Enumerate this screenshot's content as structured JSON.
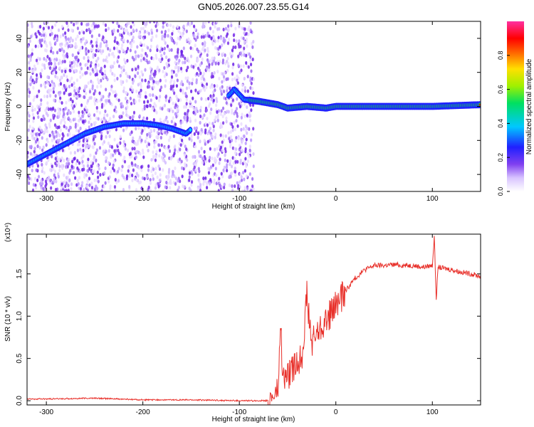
{
  "figure": {
    "title": "GN05.2026.007.23.55.G14"
  },
  "colors": {
    "line": "#e8302a",
    "axis": "#000000",
    "spectrum_scale": [
      "#ffffff",
      "#e6d8ff",
      "#a070f0",
      "#6a1fe6",
      "#2020ff",
      "#00c8ff",
      "#00e060",
      "#ffe000",
      "#ff6000",
      "#ff0000",
      "#ff30a0"
    ]
  },
  "chart_data": [
    {
      "type": "heatmap",
      "xlabel": "Height of straight line (km)",
      "ylabel": "Frequency (Hz)",
      "xlim": [
        -320,
        150
      ],
      "ylim": [
        -50,
        50
      ],
      "xticks": [
        -300,
        -200,
        -100,
        0,
        100
      ],
      "yticks": [
        -40,
        -20,
        0,
        20,
        40
      ],
      "xtick_labels": [
        "-300",
        "-200",
        "-100",
        "0",
        "100"
      ],
      "ytick_labels": [
        "-40",
        "-20",
        "0",
        "20",
        "40"
      ],
      "colorbar": {
        "label": "Normalized spectral amplitude",
        "range": [
          0,
          1
        ],
        "ticks": [
          "0.0",
          "0.2",
          "0.4",
          "0.6",
          "0.8"
        ]
      },
      "ridge": {
        "x": [
          -320,
          -300,
          -280,
          -260,
          -240,
          -220,
          -200,
          -185,
          -170,
          -155,
          -110,
          -105,
          -95,
          -80,
          -60,
          -50,
          -30,
          -10,
          0,
          20,
          60,
          100,
          150
        ],
        "y": [
          -34,
          -28,
          -22,
          -16,
          -12,
          -10,
          -10,
          -11,
          -13,
          -16,
          7,
          10,
          4,
          3,
          1,
          -1,
          0,
          -1,
          0,
          0,
          0,
          0,
          1
        ]
      }
    },
    {
      "type": "line",
      "xlabel": "Height of straight line (km)",
      "ylabel": "SNR (10 * v/v)",
      "y_scale_label": "(x10⁴)",
      "xlim": [
        -320,
        150
      ],
      "ylim": [
        -0.05,
        1.97
      ],
      "xticks": [
        -300,
        -200,
        -100,
        0,
        100
      ],
      "yticks": [
        0.0,
        0.5,
        1.0,
        1.5
      ],
      "xtick_labels": [
        "-300",
        "-200",
        "-100",
        "0",
        "100"
      ],
      "ytick_labels": [
        "0.0",
        "0.5",
        "1.0",
        "1.5"
      ],
      "series": [
        {
          "x": [
            -320,
            -300,
            -250,
            -200,
            -150,
            -100,
            -80,
            -70,
            -65,
            -60,
            -57,
            -55,
            -50,
            -45,
            -40,
            -35,
            -30,
            -25,
            -20,
            -10,
            0,
            10,
            20,
            30,
            40,
            50,
            60,
            70,
            80,
            90,
            100,
            102,
            104,
            106,
            110,
            120,
            130,
            140,
            150
          ],
          "y": [
            0.02,
            0.02,
            0.03,
            0.01,
            0.01,
            0.0,
            0.0,
            0.0,
            0.05,
            0.12,
            0.9,
            0.25,
            0.3,
            0.35,
            0.45,
            0.55,
            1.25,
            0.65,
            0.8,
            0.95,
            1.12,
            1.3,
            1.45,
            1.55,
            1.6,
            1.6,
            1.61,
            1.6,
            1.6,
            1.58,
            1.6,
            1.95,
            1.2,
            1.58,
            1.57,
            1.55,
            1.52,
            1.5,
            1.47
          ]
        }
      ]
    }
  ]
}
